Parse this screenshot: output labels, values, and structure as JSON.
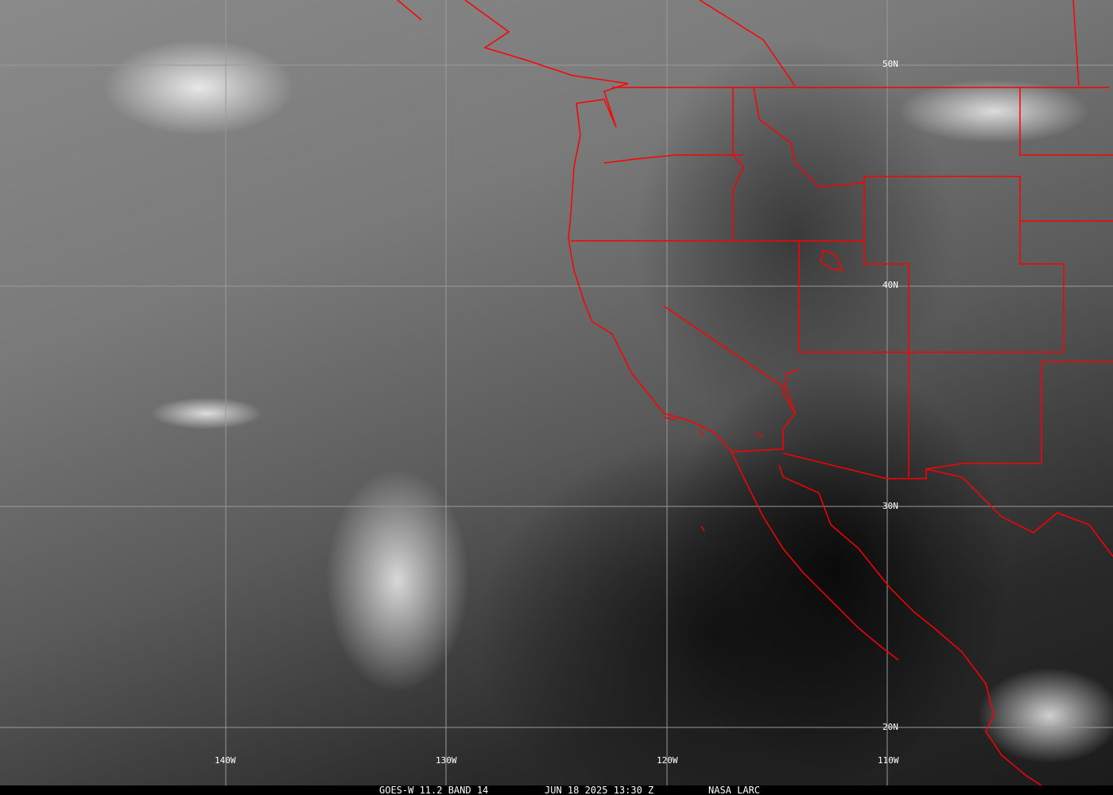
{
  "colors": {
    "borders": "#ff0000",
    "grid": "#9a9a9a",
    "caption_bg": "#000000",
    "text": "#ffffff"
  },
  "grid_labels": {
    "lon": [
      "140W",
      "130W",
      "120W",
      "110W"
    ],
    "lat": [
      "50N",
      "40N",
      "30N",
      "20N"
    ]
  },
  "caption": {
    "satellite": "GOES-W 11.2 BAND 14",
    "datetime": "JUN 18 2025 13:30 Z",
    "source": "NASA LARC"
  }
}
